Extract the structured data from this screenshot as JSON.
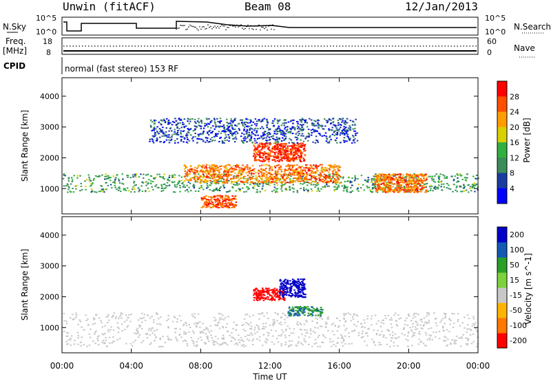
{
  "header": {
    "radar": "Unwin (fitACF)",
    "beam": "Beam 08",
    "date": "12/Jan/2013"
  },
  "top_panel": {
    "left_label": "N.Sky",
    "right_label": "N.Search",
    "y_ticks_left": [
      "10^5",
      "10^0"
    ],
    "y_ticks_right": [
      "10^5",
      "10^0"
    ]
  },
  "freq_panel": {
    "left_label_1": "Freq.",
    "left_label_2": "[MHz]",
    "y_ticks_left": [
      "18",
      "8"
    ],
    "y_ticks_right": [
      "60",
      "0"
    ],
    "right_label": "Nave",
    "cpid_label": "CPID",
    "cpid_text": "normal (fast stereo) 153 RF"
  },
  "colors": {
    "scale": [
      "#0000ff",
      "#1a3ca0",
      "#3c8c5a",
      "#30b040",
      "#d8d000",
      "#ff9c00",
      "#ff5000",
      "#ff0000"
    ],
    "velocity": [
      "#ff0000",
      "#ff7800",
      "#ffb400",
      "#c8c8c8",
      "#7dd23c",
      "#28a028",
      "#145ab4",
      "#0000c8"
    ],
    "ground_scatter": "#c8c8c8"
  },
  "chart_data": [
    {
      "type": "heatmap",
      "title": "",
      "xlabel": "Time UT",
      "ylabel": "Slant Range [km]",
      "x_ticks": [
        "00:00",
        "04:00",
        "08:00",
        "12:00",
        "16:00",
        "20:00",
        "00:00"
      ],
      "x_hours": [
        0,
        4,
        8,
        12,
        16,
        20,
        24
      ],
      "y_ticks": [
        "1000",
        "2000",
        "3000",
        "4000"
      ],
      "y_values": [
        1000,
        2000,
        3000,
        4000
      ],
      "ylim": [
        180,
        4600
      ],
      "xlim_hours": [
        0,
        24
      ],
      "colorbar": {
        "label": "Power [dB]",
        "ticks": [
          "4",
          "8",
          "12",
          "16",
          "20",
          "24",
          "28"
        ],
        "tick_values": [
          4,
          8,
          12,
          16,
          20,
          24,
          28
        ],
        "range": [
          0,
          32
        ]
      },
      "features": [
        {
          "hours": [
            0,
            24
          ],
          "range_km": [
            900,
            1500
          ],
          "level_db": 12,
          "note": "main band"
        },
        {
          "hours": [
            7,
            16
          ],
          "range_km": [
            1200,
            1800
          ],
          "level_db": 24
        },
        {
          "hours": [
            8,
            10
          ],
          "range_km": [
            400,
            800
          ],
          "level_db": 26
        },
        {
          "hours": [
            11,
            14
          ],
          "range_km": [
            1900,
            2500
          ],
          "level_db": 28
        },
        {
          "hours": [
            18,
            21
          ],
          "range_km": [
            900,
            1500
          ],
          "level_db": 24
        },
        {
          "hours": [
            5,
            17
          ],
          "range_km": [
            2500,
            3300
          ],
          "level_db": 6
        }
      ]
    },
    {
      "type": "heatmap",
      "title": "",
      "xlabel": "Time UT",
      "ylabel": "Slant Range [km]",
      "x_ticks": [
        "00:00",
        "04:00",
        "08:00",
        "12:00",
        "16:00",
        "20:00",
        "00:00"
      ],
      "x_hours": [
        0,
        4,
        8,
        12,
        16,
        20,
        24
      ],
      "y_ticks": [
        "1000",
        "2000",
        "3000",
        "4000"
      ],
      "y_values": [
        1000,
        2000,
        3000,
        4000
      ],
      "ylim": [
        180,
        4600
      ],
      "xlim_hours": [
        0,
        24
      ],
      "colorbar": {
        "label": "Velocity [m s^-1]",
        "ticks": [
          "-200",
          "-100",
          "-50",
          "-15",
          "15",
          "50",
          "100",
          "200"
        ],
        "tick_values": [
          -200,
          -100,
          -50,
          -15,
          15,
          50,
          100,
          200
        ]
      },
      "features": [
        {
          "hours": [
            0,
            24
          ],
          "range_km": [
            400,
            1500
          ],
          "velocity": 0,
          "note": "ground scatter"
        },
        {
          "hours": [
            11,
            12.8
          ],
          "range_km": [
            1900,
            2300
          ],
          "velocity": -220
        },
        {
          "hours": [
            12.5,
            14
          ],
          "range_km": [
            2000,
            2600
          ],
          "velocity": 200
        },
        {
          "hours": [
            13,
            15
          ],
          "range_km": [
            1400,
            1700
          ],
          "velocity": 50
        }
      ]
    }
  ]
}
